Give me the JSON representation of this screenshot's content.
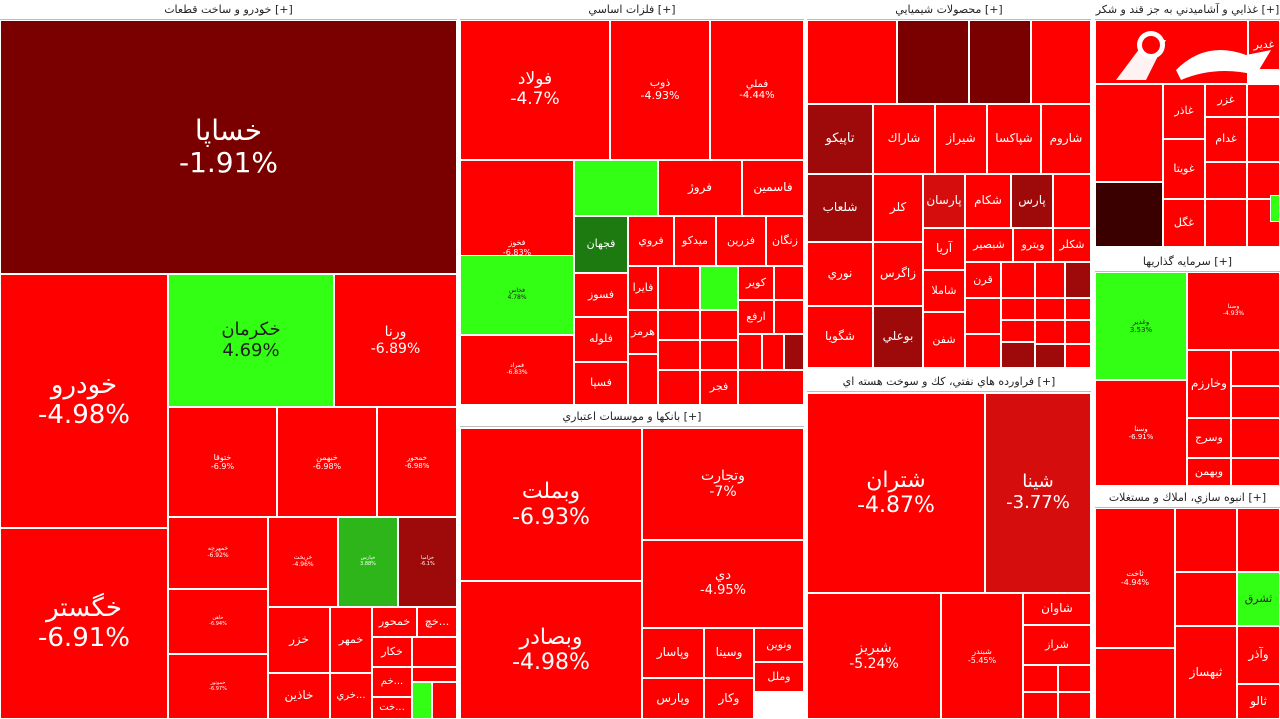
{
  "colors": {
    "strong_neg": "#ff0000",
    "mid_neg": "#d50d0d",
    "dark_neg": "#9e0a0a",
    "darkest_neg": "#7a0000",
    "very_dark": "#3a0000",
    "pos_bright": "#33ff14",
    "pos_mid": "#2db51a",
    "pos_dark": "#1c7a10"
  },
  "logo_icon": "rokna-logo-icon",
  "sectors": [
    {
      "id": "auto",
      "label": "خودرو و ساخت قطعات [+]"
    },
    {
      "id": "metals",
      "label": "فلزات اساسي [+]"
    },
    {
      "id": "chem",
      "label": "محصولات شيميايي [+]"
    },
    {
      "id": "food",
      "label": "غذايي و آشاميدني به جز قند و شكر [+]"
    },
    {
      "id": "banks",
      "label": "بانكها و موسسات اعتباري [+]"
    },
    {
      "id": "oil",
      "label": "فراورده هاي نفتي، كك و سوخت هسته اي [+]"
    },
    {
      "id": "invest",
      "label": "سرمايه گذاريها [+]"
    },
    {
      "id": "build",
      "label": "انبوه سازي، املاك و مستغلات [+]"
    }
  ],
  "chart_data": {
    "type": "treemap",
    "color_scale": "red = negative change, green = positive change",
    "cells": [
      {
        "sector": "auto",
        "name": "خساپا",
        "value": "-1.91%"
      },
      {
        "sector": "auto",
        "name": "خودرو",
        "value": "-4.98%"
      },
      {
        "sector": "auto",
        "name": "خگستر",
        "value": "-6.91%"
      },
      {
        "sector": "auto",
        "name": "خكرمان",
        "value": "4.69%"
      },
      {
        "sector": "auto",
        "name": "ورنا",
        "value": "-6.89%"
      },
      {
        "sector": "auto",
        "name": "ختوقا",
        "value": "-6.9%"
      },
      {
        "sector": "auto",
        "name": "خبهمن",
        "value": "-6.98%"
      },
      {
        "sector": "auto",
        "name": "خمحور",
        "value": "-6.98%"
      },
      {
        "sector": "auto",
        "name": "خمهرچه",
        "value": "-6.92%"
      },
      {
        "sector": "auto",
        "name": "خريخت",
        "value": "-4.96%"
      },
      {
        "sector": "auto",
        "name": "خپارس",
        "value": "3.88%"
      },
      {
        "sector": "auto",
        "name": "خزامبا",
        "value": "-6.1%"
      },
      {
        "sector": "auto",
        "name": "خاهن",
        "value": "-6.94%"
      },
      {
        "sector": "auto",
        "name": "خموتور",
        "value": "-6.97%"
      },
      {
        "sector": "auto",
        "name": "خزر",
        "value": ""
      },
      {
        "sector": "auto",
        "name": "خمهر",
        "value": ""
      },
      {
        "sector": "auto",
        "name": "خمحور",
        "value": ""
      },
      {
        "sector": "auto",
        "name": "خچ...",
        "value": ""
      },
      {
        "sector": "auto",
        "name": "خكار",
        "value": ""
      },
      {
        "sector": "auto",
        "name": "خم...",
        "value": ""
      },
      {
        "sector": "auto",
        "name": "خاذين",
        "value": ""
      },
      {
        "sector": "auto",
        "name": "خري...",
        "value": ""
      },
      {
        "sector": "auto",
        "name": "خت...",
        "value": ""
      },
      {
        "sector": "metals",
        "name": "فولاد",
        "value": "-4.7%"
      },
      {
        "sector": "metals",
        "name": "ذوب",
        "value": "-4.93%"
      },
      {
        "sector": "metals",
        "name": "فملي",
        "value": "-4.44%"
      },
      {
        "sector": "metals",
        "name": "فخوز",
        "value": "-6.83%"
      },
      {
        "sector": "metals",
        "name": "فروژ",
        "value": ""
      },
      {
        "sector": "metals",
        "name": "فاسمين",
        "value": ""
      },
      {
        "sector": "metals",
        "name": "فخاس",
        "value": "4.78%"
      },
      {
        "sector": "metals",
        "name": "فجهان",
        "value": ""
      },
      {
        "sector": "metals",
        "name": "فروي",
        "value": ""
      },
      {
        "sector": "metals",
        "name": "ميدكو",
        "value": ""
      },
      {
        "sector": "metals",
        "name": "فزرين",
        "value": ""
      },
      {
        "sector": "metals",
        "name": "زنگان",
        "value": ""
      },
      {
        "sector": "metals",
        "name": "فسوز",
        "value": ""
      },
      {
        "sector": "metals",
        "name": "فايرا",
        "value": ""
      },
      {
        "sector": "metals",
        "name": "فلوله",
        "value": ""
      },
      {
        "sector": "metals",
        "name": "هرمز",
        "value": ""
      },
      {
        "sector": "metals",
        "name": "فسپا",
        "value": ""
      },
      {
        "sector": "metals",
        "name": "فمراد",
        "value": "-6.83%"
      },
      {
        "sector": "metals",
        "name": "كوير",
        "value": ""
      },
      {
        "sector": "metals",
        "name": "ارفع",
        "value": ""
      },
      {
        "sector": "metals",
        "name": "فجر",
        "value": ""
      },
      {
        "sector": "chem",
        "name": "تاپيكو",
        "value": ""
      },
      {
        "sector": "chem",
        "name": "شاراك",
        "value": ""
      },
      {
        "sector": "chem",
        "name": "شيراز",
        "value": ""
      },
      {
        "sector": "chem",
        "name": "شپاكسا",
        "value": ""
      },
      {
        "sector": "chem",
        "name": "شاروم",
        "value": ""
      },
      {
        "sector": "chem",
        "name": "شلعاب",
        "value": ""
      },
      {
        "sector": "chem",
        "name": "كلر",
        "value": ""
      },
      {
        "sector": "chem",
        "name": "پارسان",
        "value": ""
      },
      {
        "sector": "chem",
        "name": "شكام",
        "value": ""
      },
      {
        "sector": "chem",
        "name": "پارس",
        "value": ""
      },
      {
        "sector": "chem",
        "name": "نوري",
        "value": ""
      },
      {
        "sector": "chem",
        "name": "زاگرس",
        "value": ""
      },
      {
        "sector": "chem",
        "name": "آريا",
        "value": ""
      },
      {
        "sector": "chem",
        "name": "شبصير",
        "value": ""
      },
      {
        "sector": "chem",
        "name": "ويترو",
        "value": ""
      },
      {
        "sector": "chem",
        "name": "شكلر",
        "value": ""
      },
      {
        "sector": "chem",
        "name": "شاملا",
        "value": ""
      },
      {
        "sector": "chem",
        "name": "قرن",
        "value": ""
      },
      {
        "sector": "chem",
        "name": "شگويا",
        "value": ""
      },
      {
        "sector": "chem",
        "name": "بوعلي",
        "value": ""
      },
      {
        "sector": "chem",
        "name": "شفن",
        "value": ""
      },
      {
        "sector": "banks",
        "name": "وبملت",
        "value": "-6.93%"
      },
      {
        "sector": "banks",
        "name": "وتجارت",
        "value": "-7%"
      },
      {
        "sector": "banks",
        "name": "دي",
        "value": "-4.95%"
      },
      {
        "sector": "banks",
        "name": "وبصادر",
        "value": "-4.98%"
      },
      {
        "sector": "banks",
        "name": "وپاسار",
        "value": ""
      },
      {
        "sector": "banks",
        "name": "وسينا",
        "value": ""
      },
      {
        "sector": "banks",
        "name": "ونوين",
        "value": ""
      },
      {
        "sector": "banks",
        "name": "وملل",
        "value": ""
      },
      {
        "sector": "banks",
        "name": "وپارس",
        "value": ""
      },
      {
        "sector": "banks",
        "name": "وكار",
        "value": ""
      },
      {
        "sector": "oil",
        "name": "شتران",
        "value": "-4.87%"
      },
      {
        "sector": "oil",
        "name": "شينا",
        "value": "-3.77%"
      },
      {
        "sector": "oil",
        "name": "شبريز",
        "value": "-5.24%"
      },
      {
        "sector": "oil",
        "name": "شبندر",
        "value": "-5.45%"
      },
      {
        "sector": "oil",
        "name": "شاوان",
        "value": ""
      },
      {
        "sector": "oil",
        "name": "شراز",
        "value": ""
      },
      {
        "sector": "food",
        "name": "غدير",
        "value": ""
      },
      {
        "sector": "food",
        "name": "غزر",
        "value": ""
      },
      {
        "sector": "food",
        "name": "غاذر",
        "value": ""
      },
      {
        "sector": "food",
        "name": "غدام",
        "value": ""
      },
      {
        "sector": "food",
        "name": "غويتا",
        "value": ""
      },
      {
        "sector": "food",
        "name": "غگل",
        "value": ""
      },
      {
        "sector": "invest",
        "name": "وغدير",
        "value": "3.53%"
      },
      {
        "sector": "invest",
        "name": "وصنا",
        "value": "-4.93%"
      },
      {
        "sector": "invest",
        "name": "وخارزم",
        "value": ""
      },
      {
        "sector": "invest",
        "name": "وسنا",
        "value": "-6.91%"
      },
      {
        "sector": "invest",
        "name": "وسرج",
        "value": ""
      },
      {
        "sector": "invest",
        "name": "وبهمن",
        "value": ""
      },
      {
        "sector": "build",
        "name": "ثاخت",
        "value": "-4.94%"
      },
      {
        "sector": "build",
        "name": "ثشرق",
        "value": ""
      },
      {
        "sector": "build",
        "name": "وآذر",
        "value": ""
      },
      {
        "sector": "build",
        "name": "ثبهساز",
        "value": ""
      },
      {
        "sector": "build",
        "name": "ثالو",
        "value": ""
      }
    ]
  }
}
